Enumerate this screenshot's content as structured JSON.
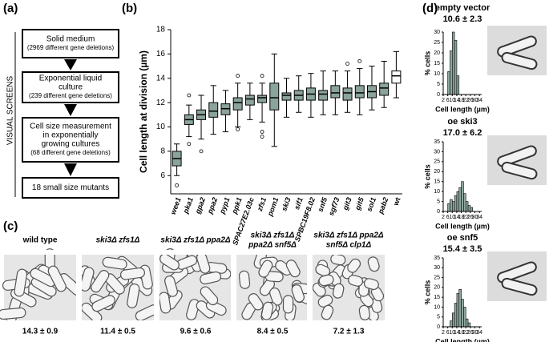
{
  "panel_labels": [
    "(a)",
    "(b)",
    "(c)",
    "(d)"
  ],
  "screens": {
    "side_label": "VISUAL SCREENS",
    "steps": [
      {
        "lines": [
          "Solid medium"
        ],
        "detail": "(2969 different gene deletions)"
      },
      {
        "lines": [
          "Exponential liquid",
          "culture"
        ],
        "detail": "(239 different gene deletions)"
      },
      {
        "lines": [
          "Cell size measurement",
          "in exponentially",
          "growing cultures"
        ],
        "detail": "(68 different gene deletions)"
      },
      {
        "lines": [
          "18 small size mutants"
        ],
        "detail": null
      }
    ]
  },
  "micrographs": [
    {
      "label": "wild type",
      "mutant": false,
      "value": "14.3 ± 0.9"
    },
    {
      "label": "ski3Δ zfs1Δ",
      "mutant": true,
      "value": "11.4 ± 0.5"
    },
    {
      "label": "ski3Δ zfs1Δ ppa2Δ",
      "mutant": true,
      "value": "9.6 ± 0.6"
    },
    {
      "label": [
        "ski3Δ zfs1Δ",
        "ppa2Δ snf5Δ"
      ],
      "mutant": true,
      "value": "8.4 ± 0.5"
    },
    {
      "label": [
        "ski3Δ zfs1Δ ppa2Δ",
        "snf5Δ clp1Δ"
      ],
      "mutant": true,
      "value": "7.2 ± 1.3"
    }
  ],
  "chart_data": [
    {
      "type": "box",
      "ylabel": "Cell length at division (µm)",
      "categories": [
        "wee1",
        "pka1",
        "gpa2",
        "ppa2",
        "pyp1",
        "ppk1",
        "SPAC27E2.03c",
        "zfs1",
        "pom1",
        "ski3",
        "sif1",
        "SPBC19F8.02",
        "snf5",
        "sgf73",
        "git3",
        "git5",
        "sol1",
        "pab2",
        "wt"
      ],
      "min": [
        6.0,
        9.2,
        9.0,
        9.4,
        9.6,
        10.0,
        10.6,
        10.4,
        8.4,
        10.8,
        11.2,
        10.8,
        11.0,
        11.0,
        11.2,
        11.0,
        11.4,
        11.6,
        12.4
      ],
      "q1": [
        6.8,
        10.2,
        10.6,
        10.8,
        11.0,
        11.4,
        11.8,
        12.0,
        11.4,
        12.2,
        12.2,
        12.2,
        12.2,
        12.4,
        12.2,
        12.4,
        12.4,
        12.6,
        13.6
      ],
      "median": [
        7.4,
        10.6,
        11.0,
        11.3,
        11.5,
        12.0,
        12.3,
        12.4,
        12.4,
        12.6,
        12.6,
        12.7,
        12.7,
        12.8,
        12.8,
        12.8,
        12.9,
        13.2,
        14.2
      ],
      "q3": [
        8.0,
        11.0,
        11.4,
        12.0,
        11.9,
        12.4,
        12.6,
        12.6,
        13.6,
        12.8,
        13.0,
        13.2,
        13.0,
        13.4,
        13.2,
        13.4,
        13.4,
        13.6,
        14.6
      ],
      "max": [
        8.6,
        11.8,
        12.6,
        13.4,
        13.0,
        13.6,
        13.6,
        13.6,
        16.0,
        14.0,
        14.2,
        14.4,
        14.6,
        14.6,
        14.6,
        14.8,
        15.0,
        15.4,
        16.2
      ],
      "outliers": [
        [
          5.2
        ],
        [
          8.6,
          12.6
        ],
        [
          8.0
        ],
        [],
        [],
        [
          9.8,
          14.2
        ],
        [],
        [
          9.6,
          9.2,
          14.2
        ],
        [],
        [],
        [],
        [],
        [],
        [],
        [
          15.2
        ],
        [
          15.4
        ],
        [],
        [],
        []
      ],
      "colors": [
        "#8aa39b",
        "#8aa39b",
        "#8aa39b",
        "#8aa39b",
        "#8aa39b",
        "#8aa39b",
        "#8aa39b",
        "#8aa39b",
        "#8aa39b",
        "#8aa39b",
        "#8aa39b",
        "#8aa39b",
        "#8aa39b",
        "#8aa39b",
        "#8aa39b",
        "#8aa39b",
        "#8aa39b",
        "#8aa39b",
        "#ffffff"
      ],
      "ylim": [
        4.5,
        18
      ],
      "yticks": [
        6,
        8,
        10,
        12,
        14,
        16,
        18
      ]
    },
    {
      "type": "histogram",
      "title": "empty vector",
      "subtitle": "10.6 ± 2.3",
      "xlabel": "Cell length (µm)",
      "ylabel": "% cells",
      "color": "#8fa8a0",
      "bins": [
        2,
        4,
        6,
        8,
        10,
        12,
        14,
        16,
        18,
        20,
        22,
        24,
        26,
        28,
        30,
        32,
        34,
        36
      ],
      "values": [
        0,
        0,
        11,
        21,
        30,
        26,
        9,
        0,
        0,
        0,
        0,
        0,
        0,
        0,
        0,
        0,
        0
      ],
      "xlim": [
        2,
        36
      ],
      "xticks": [
        2,
        6,
        10,
        14,
        18,
        22,
        26,
        30,
        34
      ],
      "ylim": [
        0,
        30
      ],
      "yticks": [
        0,
        5,
        10,
        15,
        20,
        25,
        30
      ]
    },
    {
      "type": "histogram",
      "title": "oe ski3",
      "subtitle": "17.0 ± 6.2",
      "xlabel": "Cell length (µm)",
      "ylabel": "% cells",
      "color": "#8fa8a0",
      "bins": [
        2,
        4,
        6,
        8,
        10,
        12,
        14,
        16,
        18,
        20,
        22,
        24,
        26,
        28,
        30,
        32,
        34,
        36
      ],
      "values": [
        0,
        0,
        4,
        6,
        5,
        8,
        10,
        12,
        15,
        9,
        5,
        3,
        2,
        0,
        0,
        0,
        0
      ],
      "xlim": [
        2,
        36
      ],
      "xticks": [
        2,
        6,
        10,
        14,
        18,
        22,
        26,
        30,
        34
      ],
      "ylim": [
        0,
        35
      ],
      "yticks": [
        0,
        5,
        10,
        15,
        20,
        25,
        30,
        35
      ]
    },
    {
      "type": "histogram",
      "title": "oe snf5",
      "subtitle": "15.4 ± 3.5",
      "xlabel": "Cell length (µm)",
      "ylabel": "% cells",
      "color": "#8fa8a0",
      "bins": [
        2,
        4,
        6,
        8,
        10,
        12,
        14,
        16,
        18,
        20,
        22,
        24,
        26,
        28,
        30,
        32,
        34,
        36
      ],
      "values": [
        0,
        0,
        0,
        3,
        7,
        12,
        17,
        19,
        14,
        10,
        4,
        2,
        0,
        0,
        0,
        0,
        0
      ],
      "xlim": [
        2,
        36
      ],
      "xticks": [
        2,
        6,
        10,
        14,
        18,
        22,
        26,
        30,
        34
      ],
      "ylim": [
        0,
        35
      ],
      "yticks": [
        0,
        5,
        10,
        15,
        20,
        25,
        30,
        35
      ]
    }
  ]
}
